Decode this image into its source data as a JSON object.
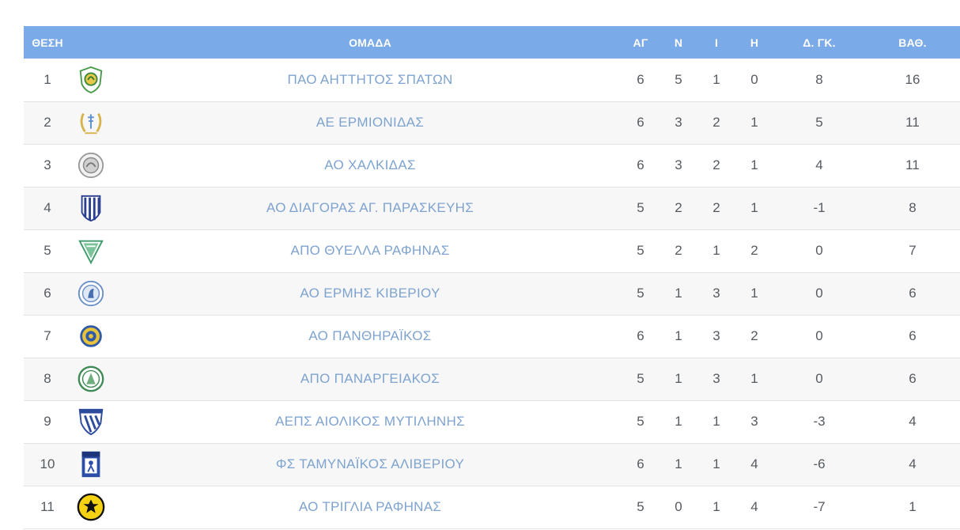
{
  "headers": {
    "pos": "ΘΕΣΗ",
    "team": "ΟΜΑΔΑ",
    "played": "ΑΓ",
    "won": "Ν",
    "drawn": "Ι",
    "lost": "Η",
    "goal_diff": "Δ. ΓΚ.",
    "points": "ΒΑΘ."
  },
  "rows": [
    {
      "pos": "1",
      "team": "ΠΑΟ ΑΗΤΤΗΤΟΣ ΣΠΑΤΩΝ",
      "logo": "green-shield-crest-icon",
      "played": "6",
      "won": "5",
      "drawn": "1",
      "lost": "0",
      "gd": "8",
      "pts": "16"
    },
    {
      "pos": "2",
      "team": "ΑΕ ΕΡΜΙΟΝΙΔΑΣ",
      "logo": "laurel-wreath-crest-icon",
      "played": "6",
      "won": "3",
      "drawn": "2",
      "lost": "1",
      "gd": "5",
      "pts": "11"
    },
    {
      "pos": "3",
      "team": "ΑΟ ΧΑΛΚΙΔΑΣ",
      "logo": "grey-round-seal-icon",
      "played": "6",
      "won": "3",
      "drawn": "2",
      "lost": "1",
      "gd": "4",
      "pts": "11"
    },
    {
      "pos": "4",
      "team": "ΑΟ ΔΙΑΓΟΡΑΣ ΑΓ. ΠΑΡΑΣΚΕΥΗΣ",
      "logo": "blue-white-striped-shield-icon",
      "played": "5",
      "won": "2",
      "drawn": "2",
      "lost": "1",
      "gd": "-1",
      "pts": "8"
    },
    {
      "pos": "5",
      "team": "ΑΠΟ ΘΥΕΛΛΑ ΡΑΦΗΝΑΣ",
      "logo": "green-pennant-crest-icon",
      "played": "5",
      "won": "2",
      "drawn": "1",
      "lost": "2",
      "gd": "0",
      "pts": "7"
    },
    {
      "pos": "6",
      "team": "ΑΟ ΕΡΜΗΣ ΚΙΒΕΡΙΟΥ",
      "logo": "blue-round-seal-icon",
      "played": "5",
      "won": "1",
      "drawn": "3",
      "lost": "1",
      "gd": "0",
      "pts": "6"
    },
    {
      "pos": "7",
      "team": "ΑΟ ΠΑΝΘΗΡΑΪΚΟΣ",
      "logo": "yellow-blue-round-badge-icon",
      "played": "6",
      "won": "1",
      "drawn": "3",
      "lost": "2",
      "gd": "0",
      "pts": "6"
    },
    {
      "pos": "8",
      "team": "ΑΠΟ ΠΑΝΑΡΓΕΙΑΚΟΣ",
      "logo": "green-round-seal-icon",
      "played": "5",
      "won": "1",
      "drawn": "3",
      "lost": "1",
      "gd": "0",
      "pts": "6"
    },
    {
      "pos": "9",
      "team": "ΑΕΠΣ ΑΙΟΛΙΚΟΣ ΜΥΤΙΛΗΝΗΣ",
      "logo": "blue-diagonal-stripe-shield-icon",
      "played": "5",
      "won": "1",
      "drawn": "1",
      "lost": "3",
      "gd": "-3",
      "pts": "4"
    },
    {
      "pos": "10",
      "team": "ΦΣ ΤΑΜΥΝΑΪΚΟΣ ΑΛΙΒΕΡΙΟΥ",
      "logo": "blue-square-crest-icon",
      "played": "6",
      "won": "1",
      "drawn": "1",
      "lost": "4",
      "gd": "-6",
      "pts": "4"
    },
    {
      "pos": "11",
      "team": "ΑΟ ΤΡΙΓΛΙΑ ΡΑΦΗΝΑΣ",
      "logo": "yellow-black-eagle-badge-icon",
      "played": "5",
      "won": "0",
      "drawn": "1",
      "lost": "4",
      "gd": "-7",
      "pts": "1"
    }
  ],
  "colors": {
    "header_bg": "#7aaae8",
    "team_link": "#7ea3cf",
    "text": "#555a60",
    "row_border": "#e3e3e3"
  }
}
